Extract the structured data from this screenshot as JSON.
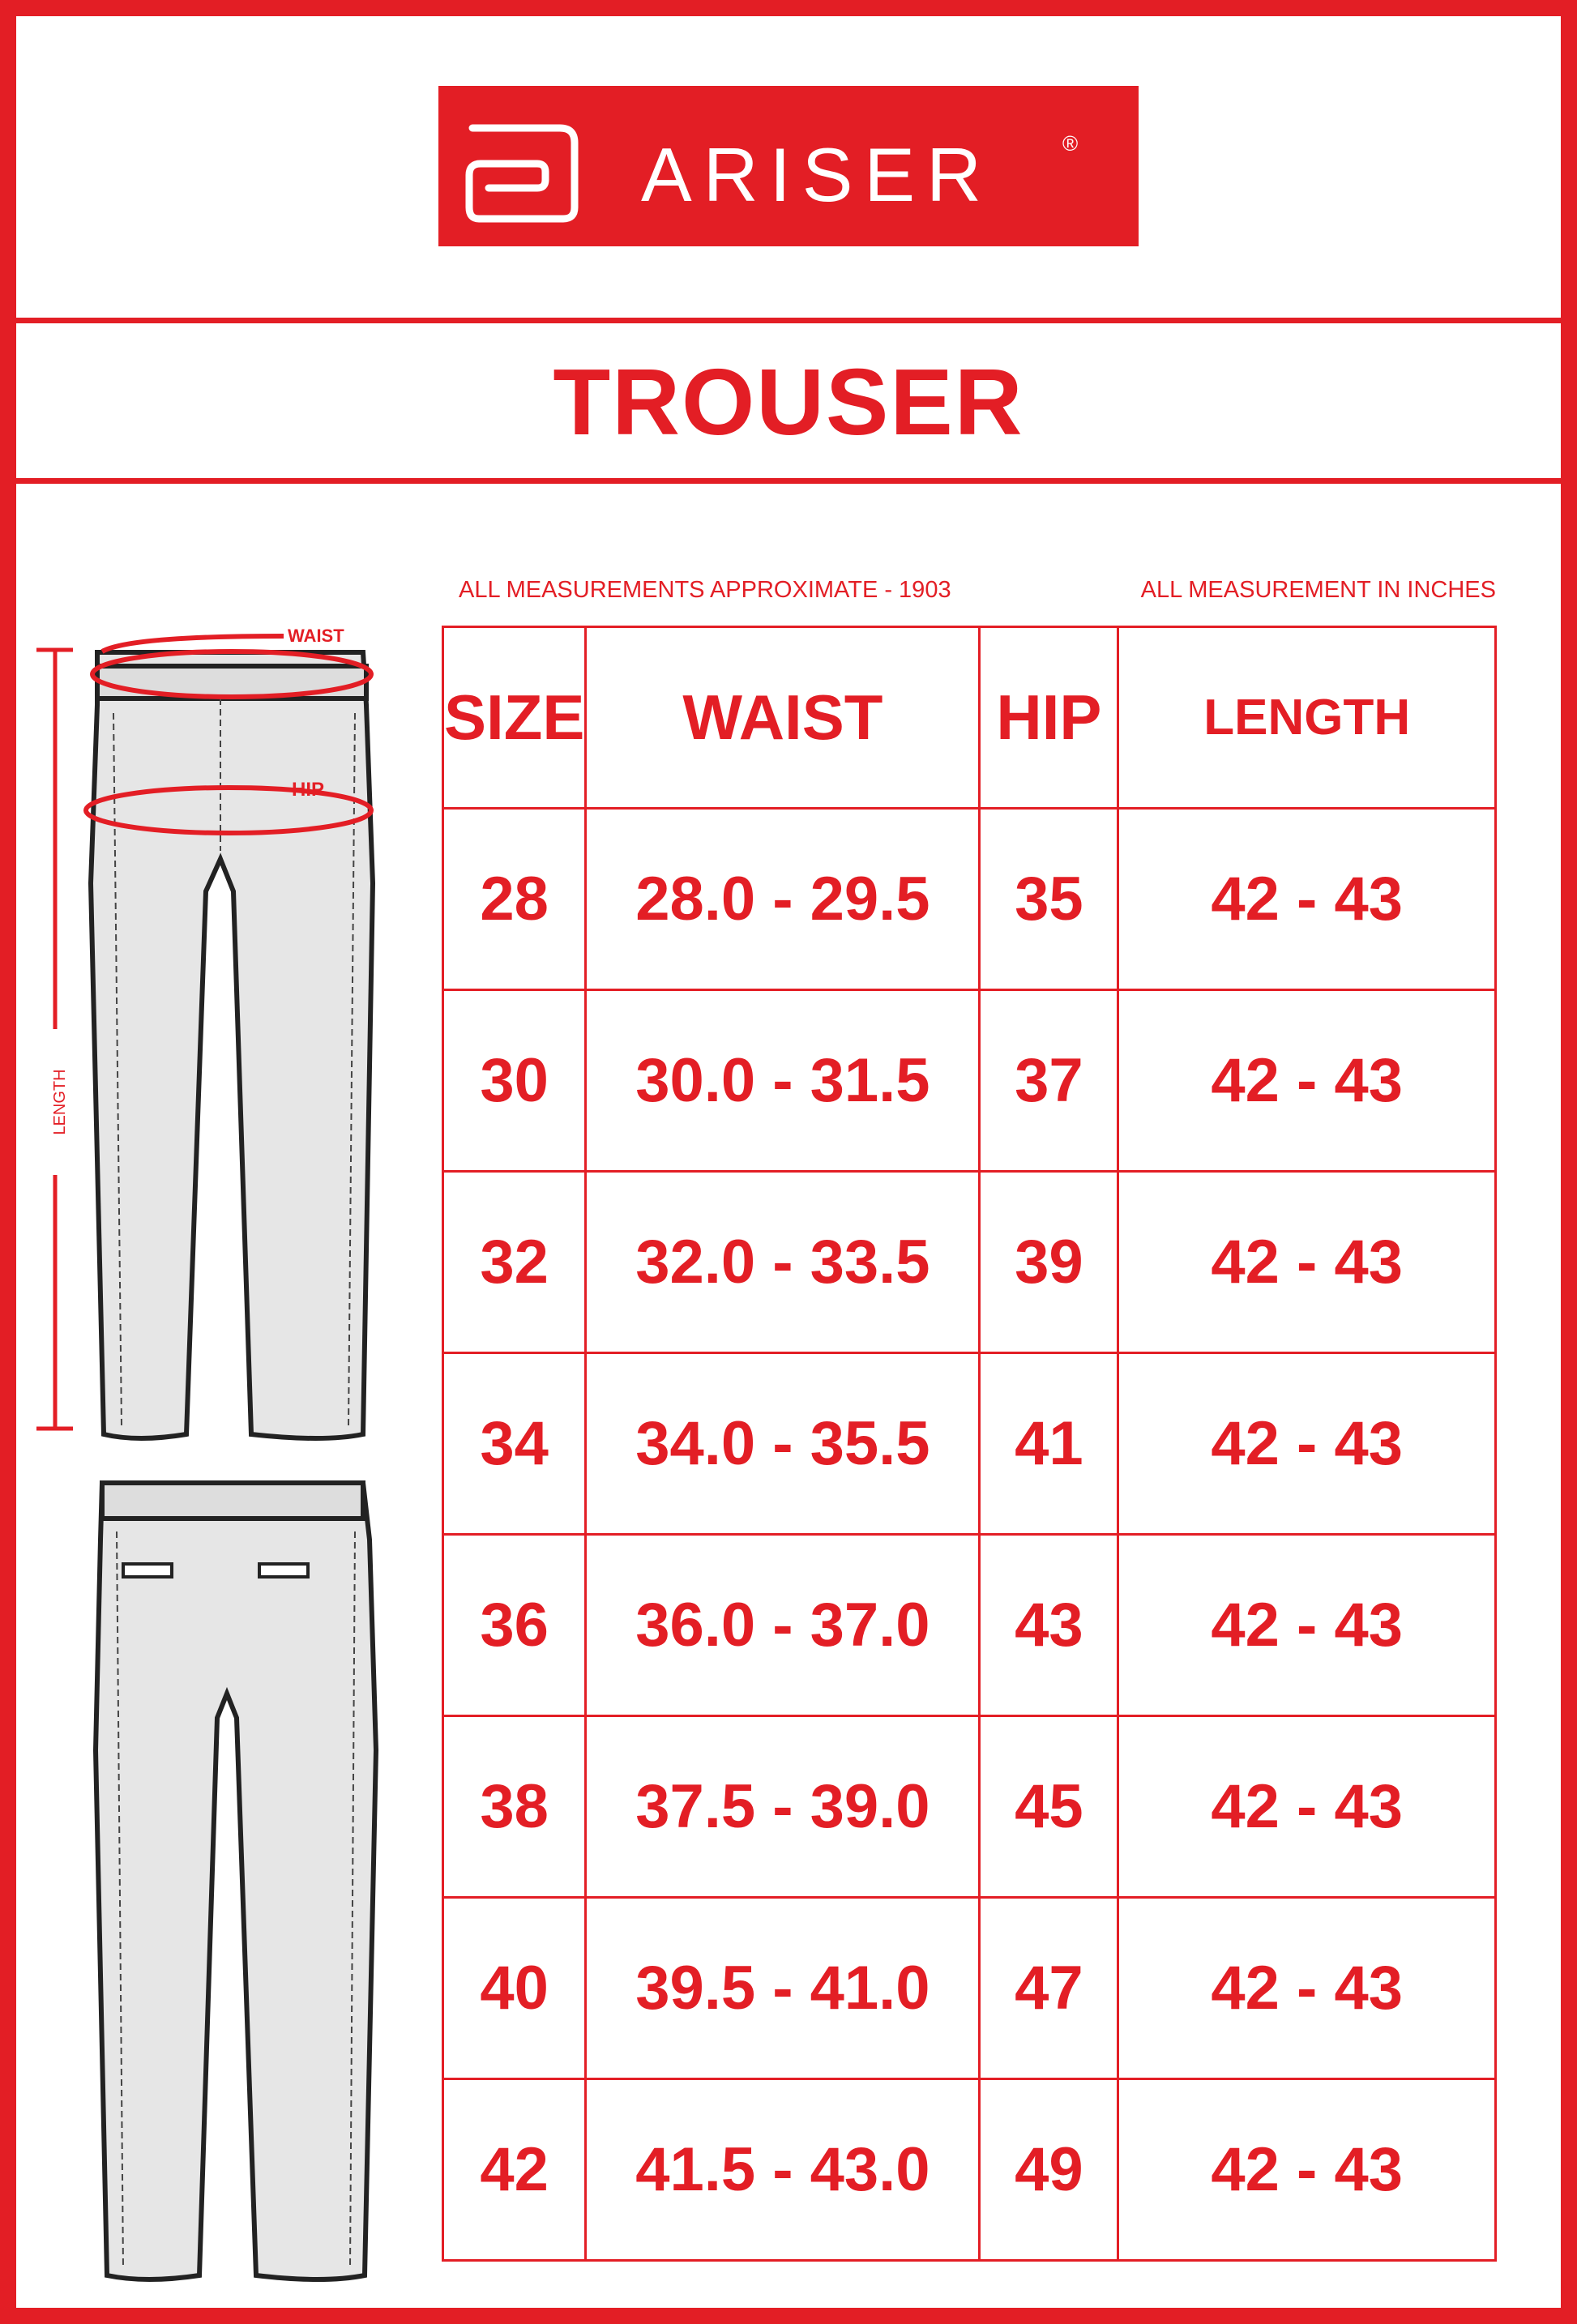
{
  "brand": {
    "name": "ARISER",
    "mark": "®",
    "color": "#e31e25"
  },
  "title": "TROUSER",
  "notes": {
    "left": "ALL MEASUREMENTS APPROXIMATE - 1903",
    "right": "ALL MEASUREMENT IN INCHES"
  },
  "diagram_labels": {
    "waist": "WAIST",
    "hip": "HIP",
    "length": "LENGTH"
  },
  "table": {
    "headers": [
      "SIZE",
      "WAIST",
      "HIP",
      "LENGTH"
    ],
    "rows": [
      [
        "28",
        "28.0 - 29.5",
        "35",
        "42 - 43"
      ],
      [
        "30",
        "30.0 - 31.5",
        "37",
        "42 - 43"
      ],
      [
        "32",
        "32.0 - 33.5",
        "39",
        "42 - 43"
      ],
      [
        "34",
        "34.0 - 35.5",
        "41",
        "42 - 43"
      ],
      [
        "36",
        "36.0 - 37.0",
        "43",
        "42 - 43"
      ],
      [
        "38",
        "37.5 - 39.0",
        "45",
        "42 - 43"
      ],
      [
        "40",
        "39.5 - 41.0",
        "47",
        "42 - 43"
      ],
      [
        "42",
        "41.5 - 43.0",
        "49",
        "42 - 43"
      ]
    ]
  }
}
